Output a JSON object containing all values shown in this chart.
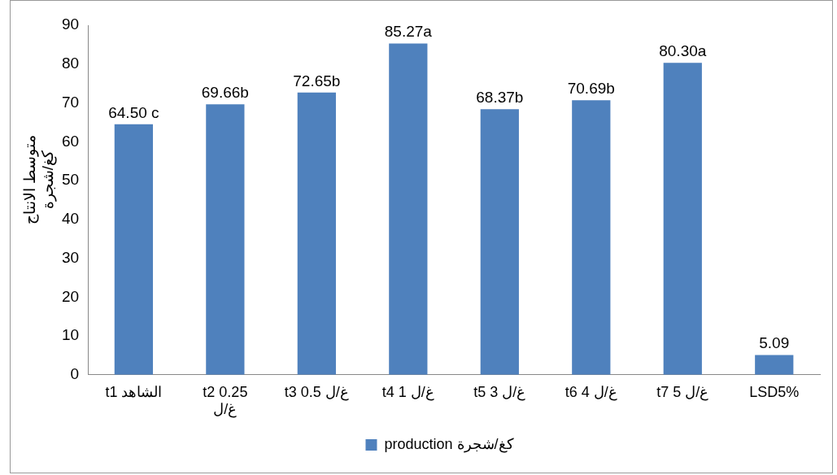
{
  "chart_data": {
    "type": "bar",
    "categories": [
      "t1 الشاهد",
      "t2 0.25 غ/ل",
      "t3 0.5 غ/ل",
      "t4 1 غ/ل",
      "t5 3 غ/ل",
      "t6 4 غ/ل",
      "t7 5 غ/ل",
      "LSD5%"
    ],
    "series": [
      {
        "name": "production كغ/شجرة",
        "color": "#4f81bd",
        "values": [
          64.5,
          69.66,
          72.65,
          85.27,
          68.37,
          70.69,
          80.3,
          5.09
        ],
        "value_labels": [
          "64.50 c",
          "69.66b",
          "72.65b",
          "85.27a",
          "68.37b",
          "70.69b",
          "80.30a",
          "5.09"
        ]
      }
    ],
    "ylabel": "متوسط الانتاج كغ/شجرة",
    "ylim": [
      0,
      90
    ],
    "yticks": [
      0,
      10,
      20,
      30,
      40,
      50,
      60,
      70,
      80,
      90
    ],
    "grid": false,
    "legend": "bottom"
  }
}
